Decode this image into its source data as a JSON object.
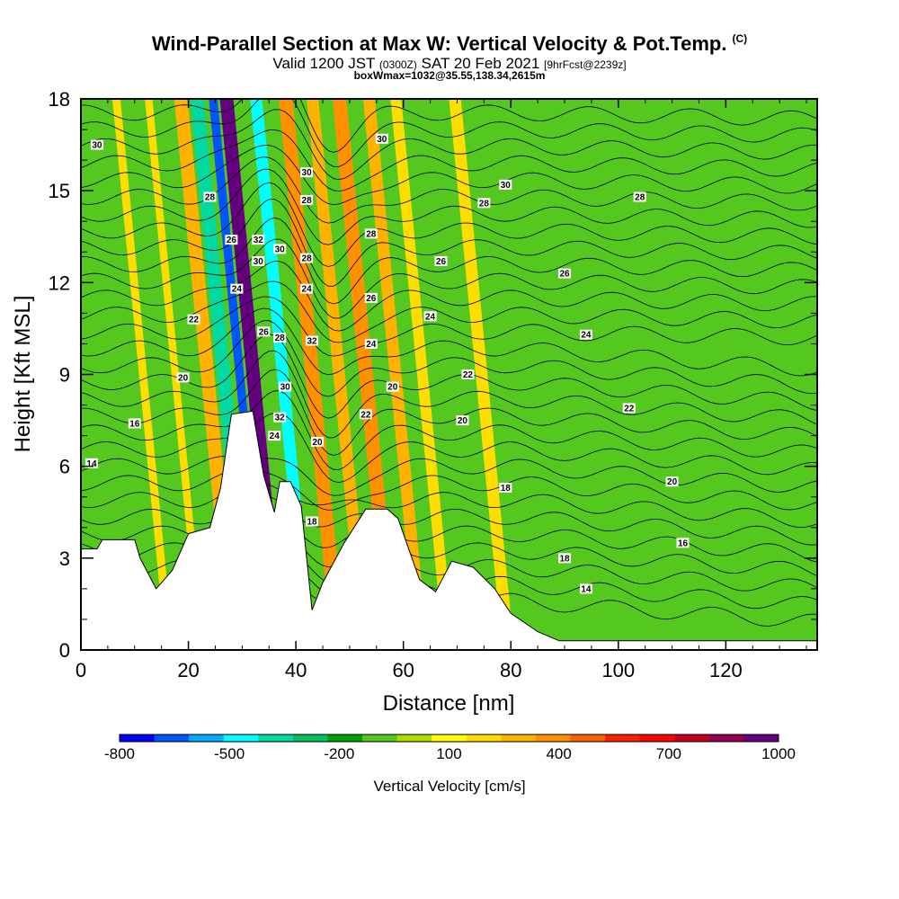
{
  "header": {
    "title": "Wind-Parallel Section at Max W: Vertical Velocity & Pot.Temp.",
    "copyright": "(C)",
    "valid_prefix": "Valid 1200 JST",
    "valid_utc": "(0300Z)",
    "valid_date": "SAT 20 Feb 2021",
    "forecast": "[9hrFcst@2239z]",
    "box_info": "boxWmax=1032@35.55,138.34,2615m"
  },
  "chart_data": {
    "type": "heatmap",
    "xlabel": "Distance [nm]",
    "ylabel": "Height [Kft MSL]",
    "xlim": [
      0,
      137
    ],
    "ylim": [
      0,
      18
    ],
    "x_ticks": [
      0,
      20,
      40,
      60,
      80,
      100,
      120
    ],
    "y_ticks": [
      0,
      3,
      6,
      9,
      12,
      15,
      18
    ],
    "grid": false,
    "colorbar": {
      "label": "Vertical Velocity [cm/s]",
      "placement": "bottom",
      "colors": [
        "#0000ff",
        "#0055ff",
        "#00aaff",
        "#00ffff",
        "#00d9a0",
        "#00c060",
        "#00a000",
        "#55c820",
        "#aadd00",
        "#ffff00",
        "#ffdd00",
        "#ffb300",
        "#ff9000",
        "#ff6000",
        "#ff2000",
        "#ff0000",
        "#c80020",
        "#960050",
        "#640080"
      ],
      "tick_values": [
        -800,
        -500,
        -200,
        100,
        400,
        700,
        1000
      ],
      "tick_labels": [
        "-800",
        "-500",
        "-200",
        "100",
        "400",
        "700",
        "1000"
      ]
    },
    "terrain_kft": [
      [
        0,
        3.3
      ],
      [
        3,
        3.3
      ],
      [
        4,
        3.6
      ],
      [
        10,
        3.6
      ],
      [
        11,
        3.0
      ],
      [
        14,
        2.0
      ],
      [
        17,
        2.6
      ],
      [
        20,
        3.8
      ],
      [
        24,
        4.0
      ],
      [
        26,
        5.3
      ],
      [
        28,
        7.7
      ],
      [
        32,
        7.8
      ],
      [
        34,
        5.7
      ],
      [
        36,
        4.5
      ],
      [
        37,
        5.5
      ],
      [
        39,
        5.5
      ],
      [
        41,
        4.7
      ],
      [
        43,
        1.3
      ],
      [
        45,
        2.2
      ],
      [
        49,
        3.5
      ],
      [
        53,
        4.6
      ],
      [
        57,
        4.6
      ],
      [
        59,
        4.3
      ],
      [
        63,
        2.3
      ],
      [
        66,
        1.9
      ],
      [
        69,
        2.9
      ],
      [
        73,
        2.7
      ],
      [
        77,
        2.0
      ],
      [
        80,
        1.2
      ],
      [
        85,
        0.6
      ],
      [
        89,
        0.3
      ],
      [
        95,
        0.3
      ],
      [
        110,
        0.3
      ],
      [
        125,
        0.3
      ],
      [
        137,
        0.3
      ]
    ],
    "velocity_bands": [
      {
        "x": 28.5,
        "w": 2.5,
        "value": 250
      },
      {
        "x": 31.5,
        "w": 2.5,
        "value": -500
      },
      {
        "x": 34.5,
        "w": 1.6,
        "value": -800
      },
      {
        "x": 37.0,
        "w": 2.5,
        "value": 900
      },
      {
        "x": 40.5,
        "w": 2.0,
        "value": -200
      },
      {
        "x": 42.5,
        "w": 2.2,
        "value": -600
      },
      {
        "x": 45.2,
        "w": 2.0,
        "value": -200
      },
      {
        "x": 48.0,
        "w": 2.6,
        "value": 300
      },
      {
        "x": 53.0,
        "w": 2.2,
        "value": 200
      },
      {
        "x": 58.0,
        "w": 2.6,
        "value": 300
      },
      {
        "x": 63.5,
        "w": 2.2,
        "value": 200
      },
      {
        "x": 68.5,
        "w": 2.0,
        "value": 150
      },
      {
        "x": 79.5,
        "w": 2.2,
        "value": 100
      },
      {
        "x": 16.5,
        "w": 1.5,
        "value": 100
      },
      {
        "x": 22.5,
        "w": 1.4,
        "value": 100
      }
    ],
    "isentrope_labels": [
      {
        "x": 3,
        "y": 16.5,
        "text": "30"
      },
      {
        "x": 24,
        "y": 14.8,
        "text": "28"
      },
      {
        "x": 28,
        "y": 13.4,
        "text": "26"
      },
      {
        "x": 29,
        "y": 11.8,
        "text": "24"
      },
      {
        "x": 21,
        "y": 10.8,
        "text": "22"
      },
      {
        "x": 19,
        "y": 8.9,
        "text": "20"
      },
      {
        "x": 10,
        "y": 7.4,
        "text": "16"
      },
      {
        "x": 2,
        "y": 6.1,
        "text": "14"
      },
      {
        "x": 33,
        "y": 13.4,
        "text": "32"
      },
      {
        "x": 33,
        "y": 12.7,
        "text": "30"
      },
      {
        "x": 37,
        "y": 13.1,
        "text": "30"
      },
      {
        "x": 42,
        "y": 15.6,
        "text": "30"
      },
      {
        "x": 42,
        "y": 14.7,
        "text": "28"
      },
      {
        "x": 42,
        "y": 12.8,
        "text": "28"
      },
      {
        "x": 42,
        "y": 11.8,
        "text": "24"
      },
      {
        "x": 34,
        "y": 10.4,
        "text": "26"
      },
      {
        "x": 37,
        "y": 10.2,
        "text": "28"
      },
      {
        "x": 43,
        "y": 10.1,
        "text": "32"
      },
      {
        "x": 38,
        "y": 8.6,
        "text": "30"
      },
      {
        "x": 37,
        "y": 7.6,
        "text": "32"
      },
      {
        "x": 36,
        "y": 7.0,
        "text": "24"
      },
      {
        "x": 44,
        "y": 6.8,
        "text": "20"
      },
      {
        "x": 43,
        "y": 4.2,
        "text": "18"
      },
      {
        "x": 56,
        "y": 16.7,
        "text": "30"
      },
      {
        "x": 54,
        "y": 13.6,
        "text": "28"
      },
      {
        "x": 54,
        "y": 11.5,
        "text": "26"
      },
      {
        "x": 54,
        "y": 10.0,
        "text": "24"
      },
      {
        "x": 58,
        "y": 8.6,
        "text": "20"
      },
      {
        "x": 53,
        "y": 7.7,
        "text": "22"
      },
      {
        "x": 67,
        "y": 12.7,
        "text": "26"
      },
      {
        "x": 65,
        "y": 10.9,
        "text": "24"
      },
      {
        "x": 72,
        "y": 9.0,
        "text": "22"
      },
      {
        "x": 71,
        "y": 7.5,
        "text": "20"
      },
      {
        "x": 75,
        "y": 14.6,
        "text": "28"
      },
      {
        "x": 79,
        "y": 15.2,
        "text": "30"
      },
      {
        "x": 79,
        "y": 5.3,
        "text": "18"
      },
      {
        "x": 104,
        "y": 14.8,
        "text": "28"
      },
      {
        "x": 90,
        "y": 12.3,
        "text": "26"
      },
      {
        "x": 94,
        "y": 10.3,
        "text": "24"
      },
      {
        "x": 102,
        "y": 7.9,
        "text": "22"
      },
      {
        "x": 110,
        "y": 5.5,
        "text": "20"
      },
      {
        "x": 112,
        "y": 3.5,
        "text": "16"
      },
      {
        "x": 90,
        "y": 3.0,
        "text": "18"
      },
      {
        "x": 94,
        "y": 2.0,
        "text": "14"
      }
    ]
  }
}
